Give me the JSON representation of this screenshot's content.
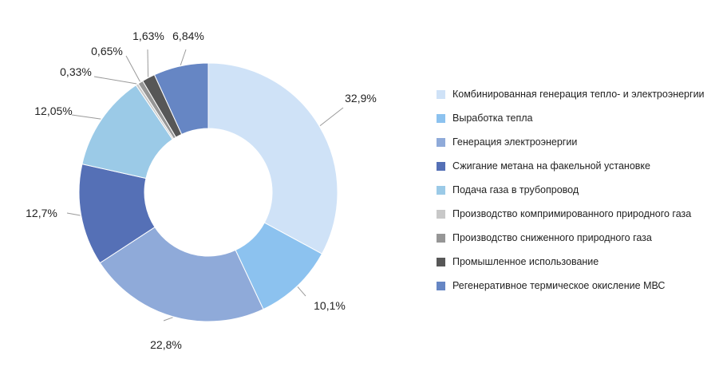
{
  "chart_data": {
    "type": "pie",
    "donut": true,
    "legend_position": "right",
    "labels": [
      "Комбинированная генерация тепло- и электроэнергии",
      "Выработка тепла",
      "Генерация электроэнергии",
      "Сжигание метана на факельной установке",
      "Подача газа в трубопровод",
      "Производство компримированного природного газа",
      "Производство сниженного природного газа",
      "Промышленное использование",
      "Регенеративное термическое окисление МВС"
    ],
    "values": [
      32.9,
      10.1,
      22.8,
      12.7,
      12.05,
      0.33,
      0.65,
      1.63,
      6.84
    ],
    "value_labels": [
      "32,9%",
      "10,1%",
      "22,8%",
      "12,7%",
      "12,05%",
      "0,33%",
      "0,65%",
      "1,63%",
      "6,84%"
    ],
    "colors": [
      "#cfe2f7",
      "#8cc2ef",
      "#8faad9",
      "#5570b6",
      "#9bcae7",
      "#c8c8c8",
      "#969696",
      "#575757",
      "#6686c4"
    ]
  }
}
